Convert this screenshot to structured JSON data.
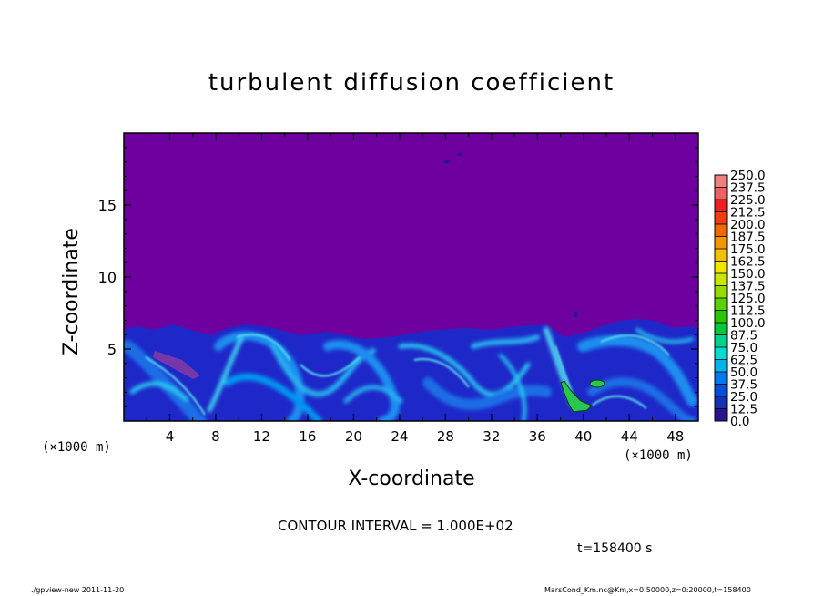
{
  "chart_data": {
    "type": "heatmap",
    "title": "turbulent diffusion coefficient",
    "xlabel": "X-coordinate",
    "ylabel": "Z-coordinate",
    "x_unit": "(×1000 m)",
    "y_unit": "(×1000 m)",
    "xlim": [
      0,
      50
    ],
    "ylim": [
      0,
      20
    ],
    "x_ticks": [
      4,
      8,
      12,
      16,
      20,
      24,
      28,
      32,
      36,
      40,
      44,
      48
    ],
    "y_ticks": [
      5,
      10,
      15
    ],
    "colorbar_levels": [
      "250.0",
      "237.5",
      "225.0",
      "212.5",
      "200.0",
      "187.5",
      "175.0",
      "162.5",
      "150.0",
      "137.5",
      "125.0",
      "112.5",
      "100.0",
      "87.5",
      "75.0",
      "62.5",
      "50.0",
      "37.5",
      "25.0",
      "12.5",
      "0.0"
    ],
    "colorbar_colors": [
      "#f08080",
      "#f06060",
      "#ee2020",
      "#f03c10",
      "#f06a00",
      "#f49600",
      "#f4c000",
      "#f0e600",
      "#c8e600",
      "#96dc00",
      "#5ad200",
      "#28c800",
      "#00c83c",
      "#00d28c",
      "#00dcd2",
      "#00b4f0",
      "#0078f0",
      "#0050dc",
      "#1432b4",
      "#2e148c",
      "#6e00a0"
    ],
    "background_level_color": "#6e00a0",
    "contour_interval": "CONTOUR INTERVAL = 1.000E+02",
    "time_label": "t=158400 s",
    "notes": "Turbulent layer below ~6×1000 m with values mostly 12.5–87.5; values near 100 around x≈38–41, z≈1–3"
  },
  "footer": {
    "left": "./gpview-new   2011-11-20",
    "right": "MarsCond_Km.nc@Km,x=0:50000,z=0:20000,t=158400"
  }
}
